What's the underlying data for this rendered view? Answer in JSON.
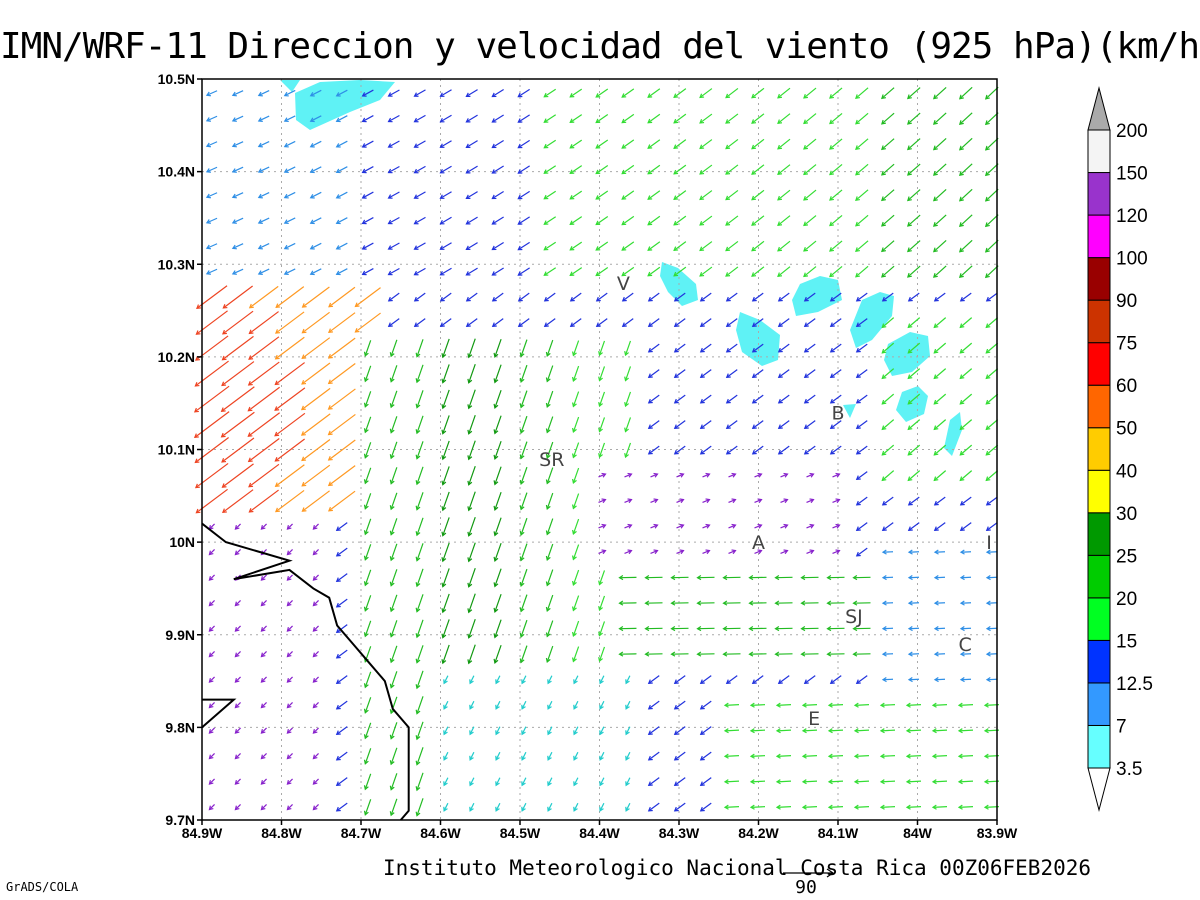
{
  "header": {
    "title": "IMN/WRF-11 Direccion y velocidad del viento (925 hPa)(km/h)",
    "credit": "Instituto Meteorologico Nacional Costa Rica 00Z06FEB2026",
    "software": "GrADS/COLA"
  },
  "map": {
    "lon_range": [
      -84.9,
      -83.9
    ],
    "lat_range": [
      9.7,
      10.5
    ],
    "lon_ticks": [
      {
        "value": -84.9,
        "label": "84.9W"
      },
      {
        "value": -84.8,
        "label": "84.8W"
      },
      {
        "value": -84.7,
        "label": "84.7W"
      },
      {
        "value": -84.6,
        "label": "84.6W"
      },
      {
        "value": -84.5,
        "label": "84.5W"
      },
      {
        "value": -84.4,
        "label": "84.4W"
      },
      {
        "value": -84.3,
        "label": "84.3W"
      },
      {
        "value": -84.2,
        "label": "84.2W"
      },
      {
        "value": -84.1,
        "label": "84.1W"
      },
      {
        "value": -84.0,
        "label": "84W"
      },
      {
        "value": -83.9,
        "label": "83.9W"
      }
    ],
    "lat_ticks": [
      {
        "value": 9.7,
        "label": "9.7N"
      },
      {
        "value": 9.8,
        "label": "9.8N"
      },
      {
        "value": 9.9,
        "label": "9.9N"
      },
      {
        "value": 10.0,
        "label": "10N"
      },
      {
        "value": 10.1,
        "label": "10.1N"
      },
      {
        "value": 10.2,
        "label": "10.2N"
      },
      {
        "value": 10.3,
        "label": "10.3N"
      },
      {
        "value": 10.4,
        "label": "10.4N"
      },
      {
        "value": 10.5,
        "label": "10.5N"
      }
    ],
    "places": [
      {
        "label": "V",
        "lon": -84.37,
        "lat": 10.28
      },
      {
        "label": "SR",
        "lon": -84.46,
        "lat": 10.09
      },
      {
        "label": "B",
        "lon": -84.1,
        "lat": 10.14
      },
      {
        "label": "A",
        "lon": -84.2,
        "lat": 10.0
      },
      {
        "label": "I",
        "lon": -83.91,
        "lat": 10.0
      },
      {
        "label": "SJ",
        "lon": -84.08,
        "lat": 9.92
      },
      {
        "label": "C",
        "lon": -83.94,
        "lat": 9.89
      },
      {
        "label": "E",
        "lon": -84.13,
        "lat": 9.81
      }
    ],
    "coastline": [
      [
        -84.9,
        10.02
      ],
      [
        -84.87,
        10.0
      ],
      [
        -84.83,
        9.99
      ],
      [
        -84.79,
        9.98
      ],
      [
        -84.86,
        9.96
      ],
      [
        -84.79,
        9.97
      ],
      [
        -84.76,
        9.95
      ],
      [
        -84.74,
        9.94
      ],
      [
        -84.73,
        9.91
      ],
      [
        -84.71,
        9.89
      ],
      [
        -84.69,
        9.87
      ],
      [
        -84.67,
        9.85
      ],
      [
        -84.66,
        9.82
      ],
      [
        -84.64,
        9.8
      ],
      [
        -84.64,
        9.75
      ],
      [
        -84.64,
        9.71
      ],
      [
        -84.65,
        9.7
      ]
    ],
    "coastline_inlet": [
      [
        -84.9,
        9.83
      ],
      [
        -84.86,
        9.83
      ],
      [
        -84.9,
        9.8
      ]
    ]
  },
  "wind_field": {
    "colors": {
      "calm": "#8822cc",
      "3.5": "#22cccc",
      "7": "#2f8fe6",
      "12.5": "#2233dd",
      "15": "#33dd33",
      "20": "#22bb22",
      "25": "#119911",
      "30": "#bbdd33",
      "40": "#ffdd00",
      "50": "#ff9922",
      "60": "#ee4422",
      "75": "#ee2255"
    },
    "shaded_color": "#5ff2f5",
    "reference_vector": {
      "value": "90"
    }
  },
  "colorbar": {
    "levels": [
      "3.5",
      "7",
      "12.5",
      "15",
      "20",
      "25",
      "30",
      "40",
      "50",
      "60",
      "75",
      "90",
      "100",
      "120",
      "150",
      "200"
    ],
    "colors": [
      "#66ffff",
      "#3399ff",
      "#0033ff",
      "#00ff22",
      "#00cc00",
      "#009900",
      "#ffff00",
      "#ffcc00",
      "#ff6600",
      "#ff0000",
      "#cc3300",
      "#990000",
      "#ff00ff",
      "#9933cc",
      "#f4f4f4",
      "#aaaaaa"
    ]
  }
}
